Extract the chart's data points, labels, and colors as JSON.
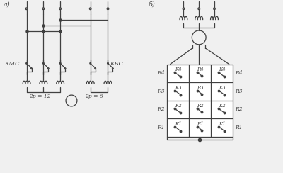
{
  "fig_width": 4.0,
  "fig_height": 2.44,
  "dpi": 100,
  "bg_color": "#f0f0f0",
  "line_color": "#404040",
  "label_a": "а)",
  "label_b": "б)",
  "label_kmc": "КМС",
  "label_kbc": "КБС",
  "label_2p12": "2p = 12",
  "label_2p6": "2p = 6",
  "r_labels_left": [
    "R1",
    "R2",
    "R3",
    "R4"
  ],
  "r_labels_right": [
    "R1",
    "R2",
    "R3",
    "R4"
  ],
  "k_labels_left": [
    "K1",
    "K2",
    "K3",
    "K4"
  ],
  "k_labels_right": [
    "K1",
    "K2",
    "K3",
    "K4"
  ],
  "rr_labels": [
    "R1",
    "R2",
    "R3",
    "R4"
  ]
}
